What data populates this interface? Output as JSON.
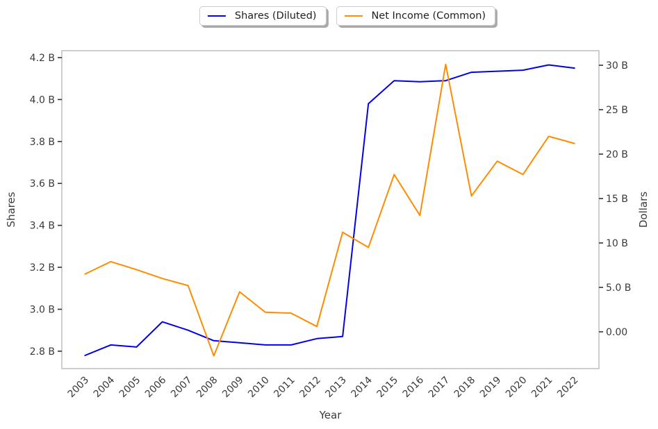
{
  "figure": {
    "background": "#ffffff"
  },
  "legend": {
    "position": "top-center",
    "items": [
      {
        "label": "Shares (Diluted)",
        "color": "#0000f0"
      },
      {
        "label": "Net Income (Common)",
        "color": "#ff8c00"
      }
    ]
  },
  "chart_data": {
    "type": "line",
    "title": "",
    "xlabel": "Year",
    "grid": false,
    "legend_position": "top-center",
    "x": [
      2003,
      2004,
      2005,
      2006,
      2007,
      2008,
      2009,
      2010,
      2011,
      2012,
      2013,
      2014,
      2015,
      2016,
      2017,
      2018,
      2019,
      2020,
      2021,
      2022
    ],
    "x_tick_labels": [
      "2003",
      "2004",
      "2005",
      "2006",
      "2007",
      "2008",
      "2009",
      "2010",
      "2011",
      "2012",
      "2013",
      "2014",
      "2015",
      "2016",
      "2017",
      "2018",
      "2019",
      "2020",
      "2021",
      "2022"
    ],
    "x_range": [
      2002.1,
      2022.95
    ],
    "series": [
      {
        "name": "Shares (Diluted)",
        "axis": "left",
        "color": "#0000f0",
        "unit": "B shares",
        "values": [
          2.78,
          2.83,
          2.82,
          2.94,
          2.9,
          2.85,
          2.84,
          2.83,
          2.83,
          2.86,
          2.87,
          3.98,
          4.09,
          4.085,
          4.09,
          4.13,
          4.135,
          4.14,
          4.165,
          4.15
        ]
      },
      {
        "name": "Net Income (Common)",
        "axis": "right",
        "color": "#ff8c00",
        "unit": "B dollars",
        "values": [
          6.5,
          7.9,
          7.0,
          6.0,
          5.2,
          -2.7,
          4.5,
          2.2,
          2.1,
          0.6,
          11.2,
          9.5,
          17.7,
          13.1,
          30.1,
          15.3,
          19.2,
          17.7,
          22.0,
          21.2
        ]
      }
    ],
    "left_axis": {
      "label": "Shares",
      "tick_values": [
        2.8,
        3.0,
        3.2,
        3.4,
        3.6,
        3.8,
        4.0,
        4.2
      ],
      "tick_labels": [
        "2.8 B",
        "3.0 B",
        "3.2 B",
        "3.4 B",
        "3.6 B",
        "3.8 B",
        "4.0 B",
        "4.2 B"
      ],
      "range": [
        2.717,
        4.233
      ]
    },
    "right_axis": {
      "label": "Dollars",
      "tick_values": [
        0,
        5,
        10,
        15,
        20,
        25,
        30
      ],
      "tick_labels": [
        "0.00",
        "5.0 B",
        "10 B",
        "15 B",
        "20 B",
        "25 B",
        "30 B"
      ],
      "range": [
        -4.14,
        31.64
      ]
    }
  },
  "style": {
    "spine_color": "#c9c9c9",
    "tick_mark_color": "#333333",
    "tick_label_color": "#3a3a3a",
    "axis_label_color": "#3a3a3a",
    "line_width": 2
  }
}
